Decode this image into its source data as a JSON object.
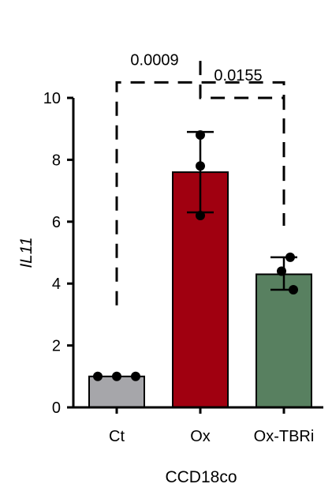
{
  "chart_data": {
    "type": "bar",
    "categories": [
      "Ct",
      "Ox",
      "Ox-TBRi"
    ],
    "values": [
      1.0,
      7.6,
      4.3
    ],
    "error": [
      {
        "low": 1.0,
        "high": 1.0
      },
      {
        "low": 6.3,
        "high": 8.9
      },
      {
        "low": 3.8,
        "high": 4.85
      }
    ],
    "points": [
      [
        1.0,
        1.0,
        1.0
      ],
      [
        8.8,
        7.8,
        6.2
      ],
      [
        4.85,
        4.4,
        3.8
      ]
    ],
    "colors": [
      "#a6a6aa",
      "#a00010",
      "#588060"
    ],
    "ylabel": "IL11",
    "xlabel": "CCD18co",
    "ylim": [
      0,
      10
    ],
    "yticks": [
      0,
      2,
      4,
      6,
      8,
      10
    ],
    "grid": false,
    "annotations": [
      {
        "from": "Ct",
        "to": "Ox-TBRi",
        "label": "0.0009",
        "level": 10.5
      },
      {
        "from": "Ox",
        "to": "Ox-TBRi",
        "label": "0.0155",
        "level": 10.0
      }
    ]
  }
}
